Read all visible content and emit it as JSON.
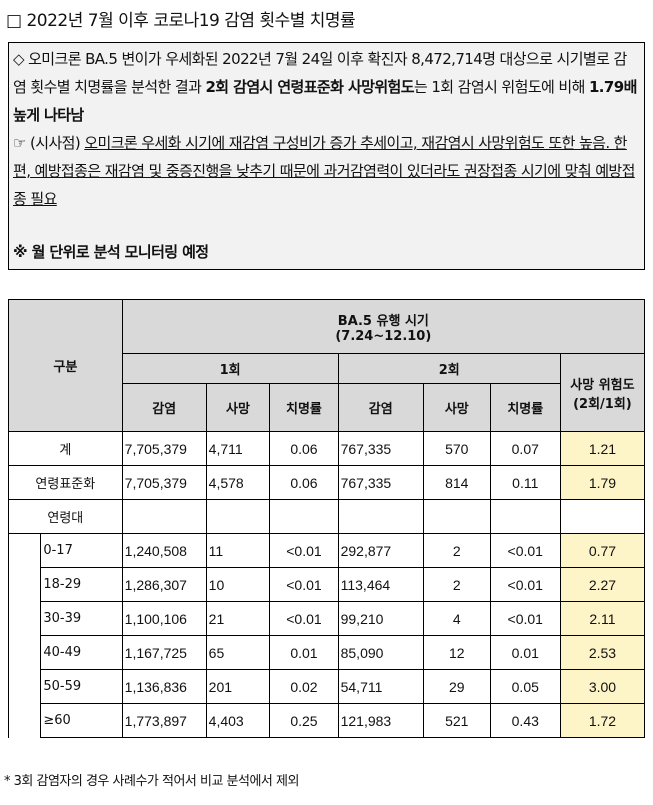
{
  "title": "□ 2022년 7월 이후 코로나19 감염 횟수별 치명률",
  "summary": {
    "p1_a": "◇ 오미크론 BA.5 변이가 우세화된 2022년 7월 24일 이후 확진자 8,472,714명 대상으로 시기별로 감염 횟수별 치명률을 분석한 결과 ",
    "p1_b": "2회 감염시 연령표준화 사망위험도",
    "p1_c": "는 1회 감염시 위험도에 비해 ",
    "p1_d": "1.79배 높게 나타남",
    "p2_a": "☞ (시사점) ",
    "p2_b": "오미크론 우세화 시기에 재감염 구성비가 증가 추세이고, 재감염시 사망위험도 또한 높음. 한편, 예방접종은 재감염 및 중증진행을 낮추기 때문에 과거감염력이 있더라도 권장접종 시기에 맞춰 예방접종 필요",
    "p3": "※ 월 단위로 분석 모니터링 예정"
  },
  "table": {
    "col_category": "구분",
    "period_title": "BA.5 유행 시기",
    "period_range": "(7.24~12.10)",
    "first": "1회",
    "second": "2회",
    "risk_header": "사망 위험도 (2회/1회)",
    "sub_headers": [
      "감염",
      "사망",
      "치명률",
      "감염",
      "사망",
      "치명률"
    ],
    "rows": [
      {
        "label": "계",
        "values": [
          "7,705,379",
          "4,711",
          "0.06",
          "767,335",
          "570",
          "0.07"
        ],
        "risk": "1.21"
      },
      {
        "label": "연령표준화",
        "values": [
          "7,705,379",
          "4,578",
          "0.06",
          "767,335",
          "814",
          "0.11"
        ],
        "risk": "1.79"
      }
    ],
    "age_label": "연령대",
    "age_rows": [
      {
        "label": "0-17",
        "values": [
          "1,240,508",
          "11",
          "<0.01",
          "292,877",
          "2",
          "<0.01"
        ],
        "risk": "0.77"
      },
      {
        "label": "18-29",
        "values": [
          "1,286,307",
          "10",
          "<0.01",
          "113,464",
          "2",
          "<0.01"
        ],
        "risk": "2.27"
      },
      {
        "label": "30-39",
        "values": [
          "1,100,106",
          "21",
          "<0.01",
          "99,210",
          "4",
          "<0.01"
        ],
        "risk": "2.11"
      },
      {
        "label": "40-49",
        "values": [
          "1,167,725",
          "65",
          "0.01",
          "85,090",
          "12",
          "0.01"
        ],
        "risk": "2.53"
      },
      {
        "label": "50-59",
        "values": [
          "1,136,836",
          "201",
          "0.02",
          "54,711",
          "29",
          "0.05"
        ],
        "risk": "3.00"
      },
      {
        "label": "≥60",
        "values": [
          "1,773,897",
          "4,403",
          "0.25",
          "121,983",
          "521",
          "0.43"
        ],
        "risk": "1.72"
      }
    ]
  },
  "footnote": "* 3회 감염자의 경우 사례수가 적어서 비교 분석에서 제외"
}
